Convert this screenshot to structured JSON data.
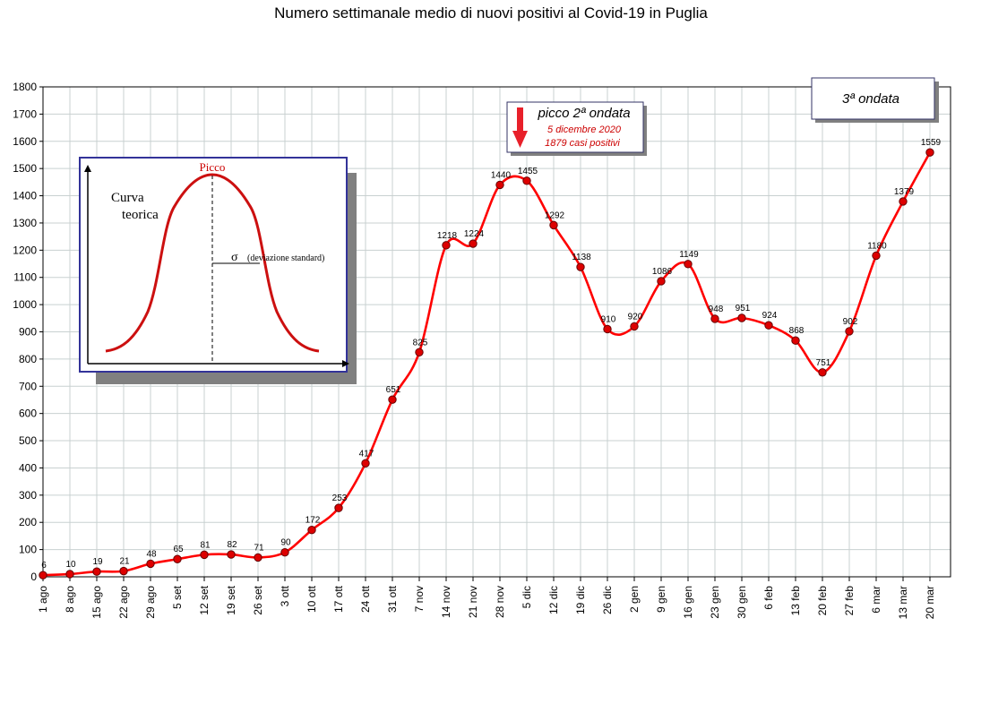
{
  "chart_data": {
    "type": "line",
    "title": "Numero settimanale medio di nuovi positivi al Covid-19 in Puglia",
    "xlabel": "",
    "ylabel": "",
    "ylim": [
      0,
      1800
    ],
    "yticks": [
      0,
      100,
      200,
      300,
      400,
      500,
      600,
      700,
      800,
      900,
      1000,
      1100,
      1200,
      1300,
      1400,
      1500,
      1600,
      1700,
      1800
    ],
    "categories": [
      "1 ago",
      "8 ago",
      "15 ago",
      "22 ago",
      "29 ago",
      "5 set",
      "12 set",
      "19 set",
      "26 set",
      "3 ott",
      "10 ott",
      "17 ott",
      "24 ott",
      "31 ott",
      "7 nov",
      "14 nov",
      "21 nov",
      "28 nov",
      "5 dic",
      "12 dic",
      "19 dic",
      "26 dic",
      "2 gen",
      "9 gen",
      "16 gen",
      "23 gen",
      "30 gen",
      "6 feb",
      "13 feb",
      "20 feb",
      "27 feb",
      "6 mar",
      "13 mar",
      "20 mar"
    ],
    "values": [
      6,
      10,
      19,
      21,
      48,
      65,
      81,
      82,
      71,
      90,
      172,
      253,
      417,
      651,
      825,
      1218,
      1224,
      1440,
      1455,
      1292,
      1138,
      910,
      920,
      1086,
      1149,
      948,
      951,
      924,
      868,
      751,
      902,
      1180,
      1379,
      1559
    ],
    "grid": true,
    "line_color": "#ff0000",
    "marker_color": "#dd0000"
  },
  "annotations": {
    "peak_box": {
      "title": "picco 2ª ondata",
      "date": "5 dicembre 2020",
      "cases": "1879 casi positivi",
      "arrow_color": "#e8202a"
    },
    "wave_box": {
      "label": "3ª ondata"
    },
    "inset": {
      "peak_label": "Picco",
      "curve_label_line1": "Curva",
      "curve_label_line2": "teorica",
      "sigma_symbol": "σ",
      "sigma_label": "(deviazione standard)"
    }
  },
  "colors": {
    "grid": "#c8d0d0",
    "frame": "#000000",
    "inset_border": "#333399",
    "shadow": "#808080",
    "peak_text": "#cc0000"
  }
}
